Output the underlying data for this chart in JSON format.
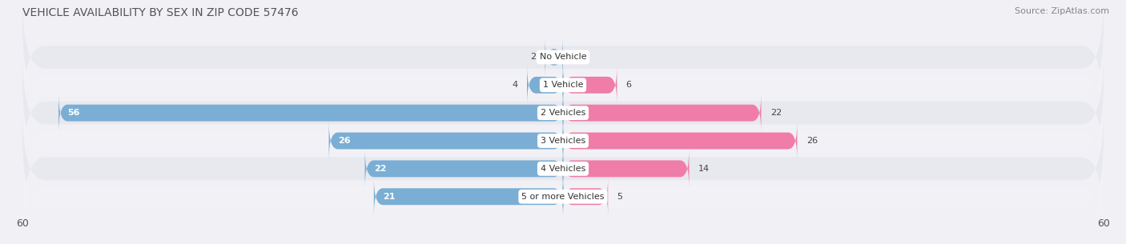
{
  "title": "VEHICLE AVAILABILITY BY SEX IN ZIP CODE 57476",
  "source": "Source: ZipAtlas.com",
  "categories": [
    "No Vehicle",
    "1 Vehicle",
    "2 Vehicles",
    "3 Vehicles",
    "4 Vehicles",
    "5 or more Vehicles"
  ],
  "male_values": [
    2,
    4,
    56,
    26,
    22,
    21
  ],
  "female_values": [
    0,
    6,
    22,
    26,
    14,
    5
  ],
  "male_color": "#7aaed4",
  "female_color": "#f07ca8",
  "row_bg_colors": [
    "#e8e8ef",
    "#f2f2f6",
    "#e8e8ef",
    "#f2f2f6",
    "#e8e8ef",
    "#f2f2f6"
  ],
  "axis_limit": 60,
  "title_fontsize": 10,
  "source_fontsize": 8,
  "value_fontsize": 8,
  "legend_fontsize": 9,
  "category_fontsize": 8,
  "background_color": "#f0f0f5"
}
